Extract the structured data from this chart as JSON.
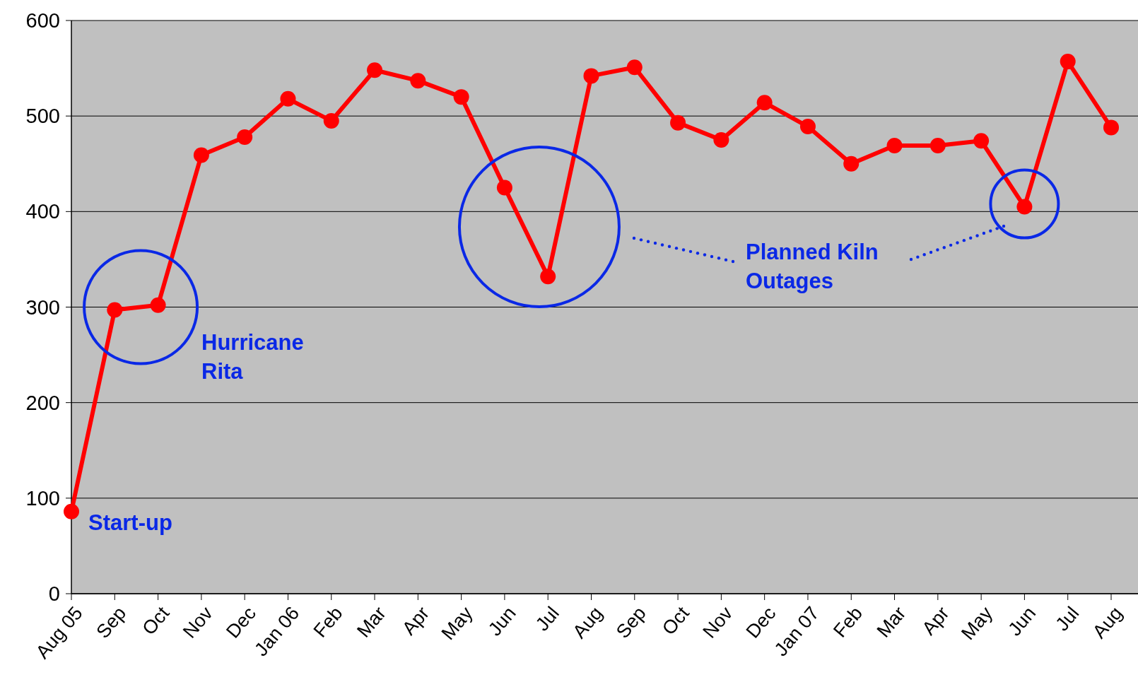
{
  "chart_data": {
    "type": "line",
    "categories": [
      "Aug 05",
      "Sep",
      "Oct",
      "Nov",
      "Dec",
      "Jan 06",
      "Feb",
      "Mar",
      "Apr",
      "May",
      "Jun",
      "Jul",
      "Aug",
      "Sep",
      "Oct",
      "Nov",
      "Dec",
      "Jan 07",
      "Feb",
      "Mar",
      "Apr",
      "May",
      "Jun",
      "Jul",
      "Aug"
    ],
    "series": [
      {
        "color": "#ff0000",
        "values": [
          86,
          297,
          302,
          459,
          478,
          518,
          495,
          548,
          537,
          520,
          425,
          332,
          542,
          551,
          493,
          475,
          514,
          489,
          450,
          469,
          469,
          474,
          405,
          557,
          488
        ]
      }
    ],
    "ylim": [
      0,
      600
    ],
    "yticks": [
      0,
      100,
      200,
      300,
      400,
      500,
      600
    ],
    "grid": "y",
    "marker": "circle",
    "line_style": "solid",
    "annotations": [
      "Start-up",
      "Hurricane Rita",
      "Planned Kiln Outages"
    ]
  }
}
